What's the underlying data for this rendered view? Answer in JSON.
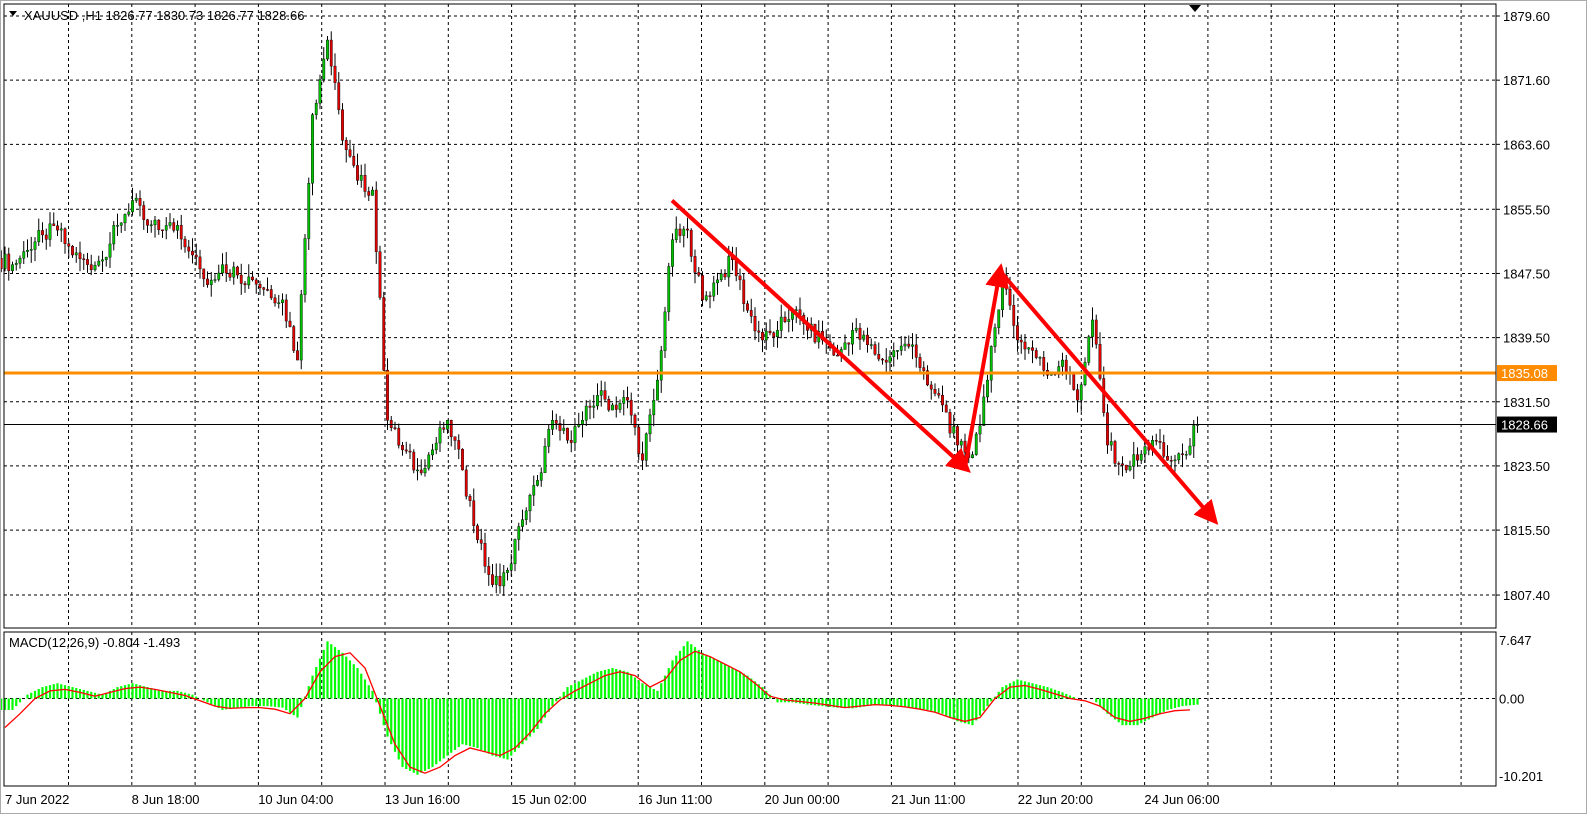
{
  "header": {
    "symbol_line": "XAUUSD ,H1  1826.77 1830.73 1826.77 1828.66",
    "menu_icon": "triangle-down-icon"
  },
  "colors": {
    "bull": "#00c000",
    "bear": "#e00000",
    "level_line": "#ff8c00",
    "current_price_bg": "#000000",
    "macd_histogram": "#00ff00",
    "macd_signal": "#ff0000",
    "arrows": "#ff0000"
  },
  "chart_data": [
    {
      "type": "candlestick",
      "title": "XAUUSD ,H1",
      "ohlc_last": {
        "open": 1826.77,
        "high": 1830.73,
        "low": 1826.77,
        "close": 1828.66
      },
      "price_ticks": [
        "1879.60",
        "1871.60",
        "1863.60",
        "1855.50",
        "1847.50",
        "1839.50",
        "1831.50",
        "1823.50",
        "1815.50",
        "1807.40"
      ],
      "time_ticks": [
        "7 Jun 2022",
        "8 Jun 18:00",
        "10 Jun 04:00",
        "13 Jun 16:00",
        "15 Jun 02:00",
        "16 Jun 11:00",
        "20 Jun 00:00",
        "21 Jun 11:00",
        "22 Jun 20:00",
        "24 Jun 06:00"
      ],
      "ylim": [
        1803.5,
        1881.0
      ],
      "grid": true,
      "level_line": {
        "value": 1835.08,
        "label": "1835.08"
      },
      "current_price": {
        "value": 1828.66,
        "label": "1828.66"
      },
      "approx_close_every_4h": [
        1848.6,
        1850.4,
        1852.3,
        1852.9,
        1849.8,
        1848.6,
        1849.2,
        1853.5,
        1856.6,
        1853.5,
        1852.9,
        1853.5,
        1849.8,
        1846.1,
        1848.6,
        1847.3,
        1846.7,
        1845.5,
        1844.2,
        1836.7,
        1867.3,
        1876.6,
        1864.1,
        1859.1,
        1857.9,
        1829.2,
        1825.5,
        1823.0,
        1825.5,
        1829.2,
        1823.0,
        1814.3,
        1808.7,
        1810.5,
        1816.8,
        1821.7,
        1829.2,
        1826.7,
        1829.2,
        1832.3,
        1831.1,
        1831.7,
        1824.2,
        1834.2,
        1851.7,
        1852.9,
        1844.2,
        1846.7,
        1849.2,
        1842.9,
        1839.2,
        1840.4,
        1842.9,
        1840.4,
        1839.2,
        1837.3,
        1840.4,
        1838.6,
        1836.7,
        1837.9,
        1838.6,
        1833.6,
        1831.1,
        1826.1,
        1824.9,
        1834.2,
        1847.3,
        1839.2,
        1837.9,
        1834.8,
        1836.7,
        1831.7,
        1841.7,
        1826.1,
        1823.6,
        1824.2,
        1826.7,
        1824.2,
        1824.9,
        1828.66
      ]
    },
    {
      "type": "bar+line",
      "title": "MACD(12,26,9) -0.804 -1.493",
      "y_ticks": [
        "7.647",
        "0.00",
        "-10.201"
      ],
      "ylim": [
        -10.201,
        7.647
      ],
      "histogram_every_4h": [
        -1.5,
        0.5,
        1.5,
        2,
        1.5,
        1,
        0.5,
        1.5,
        2,
        1.5,
        1,
        1,
        0.5,
        -0.5,
        -1.5,
        -1.2,
        -1,
        -1,
        -1.2,
        -2.5,
        3,
        7.5,
        6,
        4,
        1,
        -5,
        -9,
        -10,
        -9,
        -7.5,
        -6,
        -6.5,
        -7.5,
        -8,
        -6,
        -4,
        -1,
        1.5,
        2.5,
        3.5,
        4,
        3.5,
        2,
        1,
        5,
        7.5,
        6,
        5,
        4,
        3,
        1.5,
        -0.5,
        -0.5,
        -0.8,
        -1,
        -1.2,
        -1.3,
        -1,
        -0.8,
        -1,
        -1.2,
        -1.5,
        -2,
        -3,
        -3.5,
        -1,
        1.5,
        2.5,
        2,
        1.5,
        0.8,
        0,
        0,
        -2,
        -3.5,
        -3.5,
        -2.5,
        -1.5,
        -1,
        -0.804
      ],
      "signal_every_4h": [
        -3.8,
        -2,
        0,
        1,
        1.2,
        0.8,
        0.3,
        0.8,
        1.3,
        1.5,
        1.2,
        0.8,
        0.4,
        -0.3,
        -1,
        -1.3,
        -1.2,
        -1.2,
        -1.4,
        -2,
        0,
        3.5,
        5.5,
        6,
        4,
        -1,
        -6,
        -9,
        -9.8,
        -9,
        -7.5,
        -6.5,
        -7,
        -7.5,
        -6.5,
        -4.5,
        -2,
        -0.2,
        1,
        2,
        3,
        3.5,
        3,
        1.5,
        2.5,
        5,
        6.2,
        5.5,
        4.5,
        3.5,
        2,
        0.3,
        -0.2,
        -0.4,
        -0.6,
        -0.9,
        -1.2,
        -1,
        -0.8,
        -0.9,
        -1.1,
        -1.4,
        -1.8,
        -2.5,
        -3,
        -2.5,
        0,
        1.5,
        1.7,
        1.2,
        0.6,
        0,
        -0.3,
        -1,
        -2.5,
        -3,
        -2.6,
        -2,
        -1.6,
        -1.493
      ]
    }
  ]
}
